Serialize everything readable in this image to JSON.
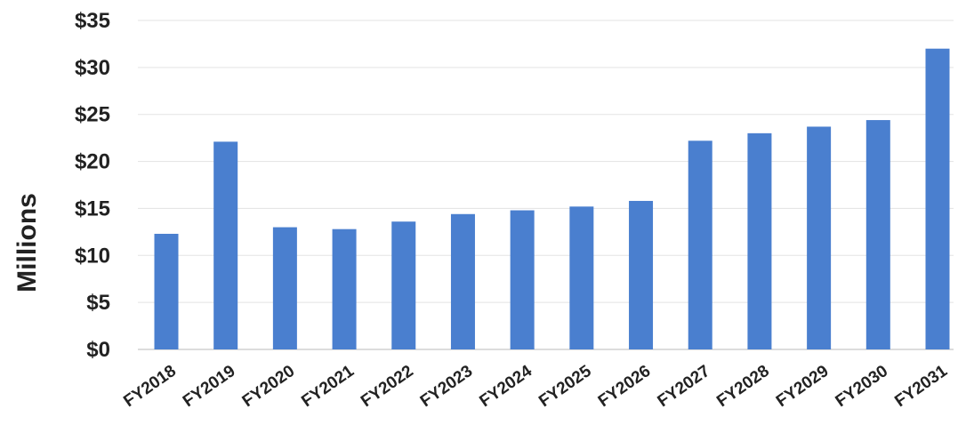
{
  "chart_data": {
    "type": "bar",
    "title": "",
    "xlabel": "",
    "ylabel": "Millions",
    "ylim": [
      0,
      35
    ],
    "y_ticks": [
      0,
      5,
      10,
      15,
      20,
      25,
      30,
      35
    ],
    "y_tick_labels": [
      "$0",
      "$5",
      "$10",
      "$15",
      "$20",
      "$25",
      "$30",
      "$35"
    ],
    "grid": true,
    "legend": "none",
    "bar_color": "#4a7fcf",
    "categories": [
      "FY2018",
      "FY2019",
      "FY2020",
      "FY2021",
      "FY2022",
      "FY2023",
      "FY2024",
      "FY2025",
      "FY2026",
      "FY2027",
      "FY2028",
      "FY2029",
      "FY2030",
      "FY2031"
    ],
    "values": [
      12.3,
      22.1,
      13.0,
      12.8,
      13.6,
      14.4,
      14.8,
      15.2,
      15.8,
      22.2,
      23.0,
      23.7,
      24.4,
      32.0
    ]
  }
}
